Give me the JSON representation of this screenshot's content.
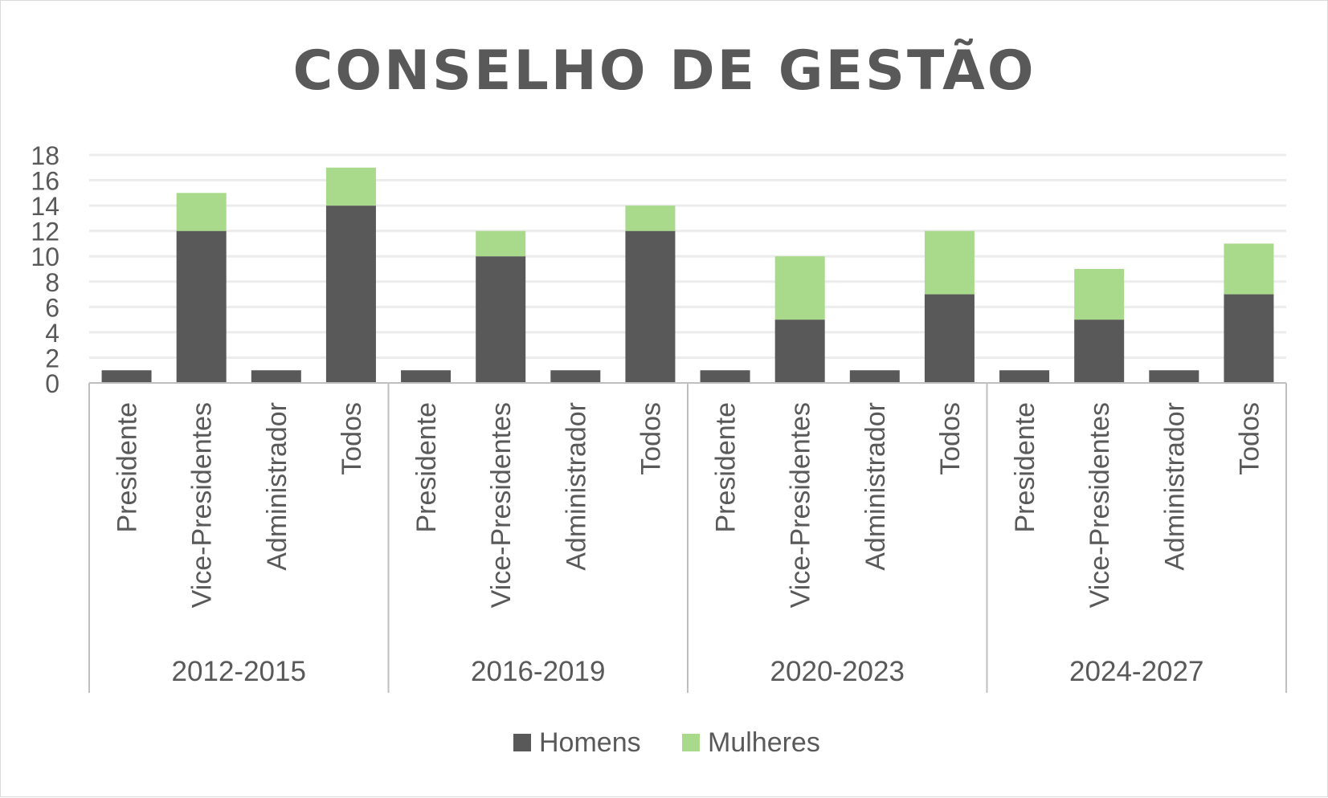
{
  "chart_data": {
    "type": "bar",
    "stacked": true,
    "title": "CONSELHO DE GESTÃO",
    "xlabel": "",
    "ylabel": "",
    "ylim": [
      0,
      18
    ],
    "y_ticks": [
      "0",
      "2",
      "4",
      "6",
      "8",
      "10",
      "12",
      "14",
      "16",
      "18"
    ],
    "grid": true,
    "legend_position": "bottom",
    "groups": [
      {
        "label": "2012-2015",
        "categories": [
          "Presidente",
          "Vice-Presidentes",
          "Administrador",
          "Todos"
        ]
      },
      {
        "label": "2016-2019",
        "categories": [
          "Presidente",
          "Vice-Presidentes",
          "Administrador",
          "Todos"
        ]
      },
      {
        "label": "2020-2023",
        "categories": [
          "Presidente",
          "Vice-Presidentes",
          "Administrador",
          "Todos"
        ]
      },
      {
        "label": "2024-2027",
        "categories": [
          "Presidente",
          "Vice-Presidentes",
          "Administrador",
          "Todos"
        ]
      }
    ],
    "series": [
      {
        "name": "Homens",
        "color": "#595959",
        "values": [
          1,
          12,
          1,
          14,
          1,
          10,
          1,
          12,
          1,
          5,
          1,
          7,
          1,
          5,
          1,
          7
        ]
      },
      {
        "name": "Mulheres",
        "color": "#a9d98b",
        "values": [
          0,
          3,
          0,
          3,
          0,
          2,
          0,
          2,
          0,
          5,
          0,
          5,
          0,
          4,
          0,
          4
        ]
      }
    ]
  }
}
